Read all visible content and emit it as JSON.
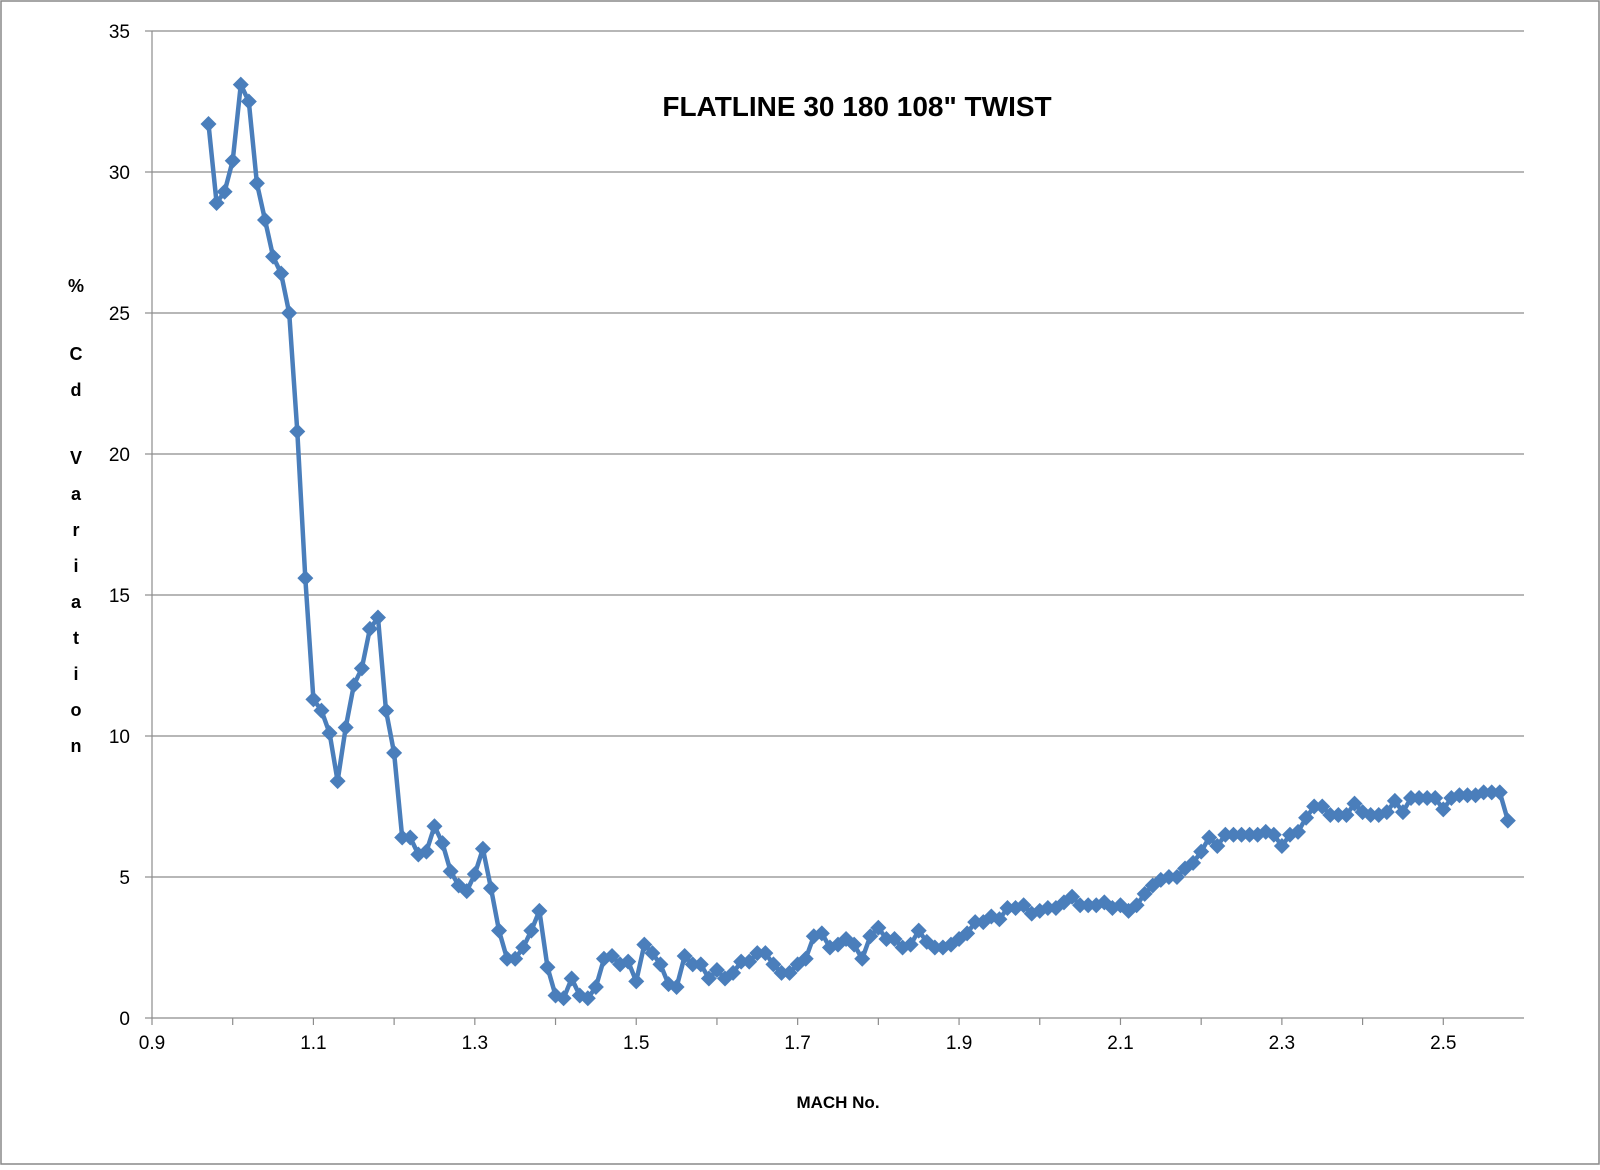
{
  "chart_data": {
    "type": "line",
    "title": "FLATLINE 30 180 108\" TWIST",
    "xlabel": "MACH No.",
    "ylabel": "% Cd Variation",
    "xlim": [
      0.9,
      2.6
    ],
    "ylim": [
      0,
      35
    ],
    "xticks": [
      "0.9",
      "1.1",
      "1.3",
      "1.5",
      "1.7",
      "1.9",
      "2.1",
      "2.3",
      "2.5"
    ],
    "yticks": [
      "0",
      "5",
      "10",
      "15",
      "20",
      "25",
      "30",
      "35"
    ],
    "grid": "horizontal",
    "legend": "none",
    "marker": "diamond",
    "colors": {
      "series": "#4a7ebb",
      "grid": "#8c8c8c",
      "axis": "#8c8c8c",
      "text": "#000000",
      "border": "#888888"
    },
    "series": [
      {
        "x": [
          0.97,
          0.98,
          0.99,
          1.0,
          1.01,
          1.02,
          1.03,
          1.04,
          1.05,
          1.06,
          1.07,
          1.08,
          1.09,
          1.1,
          1.11,
          1.12,
          1.13,
          1.14,
          1.15,
          1.16,
          1.17,
          1.18,
          1.19,
          1.2,
          1.21,
          1.22,
          1.23,
          1.24,
          1.25,
          1.26,
          1.27,
          1.28,
          1.29,
          1.3,
          1.31,
          1.32,
          1.33,
          1.34,
          1.35,
          1.36,
          1.37,
          1.38,
          1.39,
          1.4,
          1.41,
          1.42,
          1.43,
          1.44,
          1.45,
          1.46,
          1.47,
          1.48,
          1.49,
          1.5,
          1.51,
          1.52,
          1.53,
          1.54,
          1.55,
          1.56,
          1.57,
          1.58,
          1.59,
          1.6,
          1.61,
          1.62,
          1.63,
          1.64,
          1.65,
          1.66,
          1.67,
          1.68,
          1.69,
          1.7,
          1.71,
          1.72,
          1.73,
          1.74,
          1.75,
          1.76,
          1.77,
          1.78,
          1.79,
          1.8,
          1.81,
          1.82,
          1.83,
          1.84,
          1.85,
          1.86,
          1.87,
          1.88,
          1.89,
          1.9,
          1.91,
          1.92,
          1.93,
          1.94,
          1.95,
          1.96,
          1.97,
          1.98,
          1.99,
          2.0,
          2.01,
          2.02,
          2.03,
          2.04,
          2.05,
          2.06,
          2.07,
          2.08,
          2.09,
          2.1,
          2.11,
          2.12,
          2.13,
          2.14,
          2.15,
          2.16,
          2.17,
          2.18,
          2.19,
          2.2,
          2.21,
          2.22,
          2.23,
          2.24,
          2.25,
          2.26,
          2.27,
          2.28,
          2.29,
          2.3,
          2.31,
          2.32,
          2.33,
          2.34,
          2.35,
          2.36,
          2.37,
          2.38,
          2.39,
          2.4,
          2.41,
          2.42,
          2.43,
          2.44,
          2.45,
          2.46,
          2.47,
          2.48,
          2.49,
          2.5,
          2.51,
          2.52,
          2.53,
          2.54,
          2.55,
          2.56,
          2.57,
          2.58
        ],
        "y": [
          31.7,
          28.9,
          29.3,
          30.4,
          33.1,
          32.5,
          29.6,
          28.3,
          27.0,
          26.4,
          25.0,
          20.8,
          15.6,
          11.3,
          10.9,
          10.1,
          8.4,
          10.3,
          11.8,
          12.4,
          13.8,
          14.2,
          10.9,
          9.4,
          6.4,
          6.4,
          5.8,
          5.9,
          6.8,
          6.2,
          5.2,
          4.7,
          4.5,
          5.1,
          6.0,
          4.6,
          3.1,
          2.1,
          2.1,
          2.5,
          3.1,
          3.8,
          1.8,
          0.8,
          0.7,
          1.4,
          0.8,
          0.7,
          1.1,
          2.1,
          2.2,
          1.9,
          2.0,
          1.3,
          2.6,
          2.3,
          1.9,
          1.2,
          1.1,
          2.2,
          1.9,
          1.9,
          1.4,
          1.7,
          1.4,
          1.6,
          2.0,
          2.0,
          2.3,
          2.3,
          1.9,
          1.6,
          1.6,
          1.9,
          2.1,
          2.9,
          3.0,
          2.5,
          2.6,
          2.8,
          2.6,
          2.1,
          2.9,
          3.2,
          2.8,
          2.8,
          2.5,
          2.6,
          3.1,
          2.7,
          2.5,
          2.5,
          2.6,
          2.8,
          3.0,
          3.4,
          3.4,
          3.6,
          3.5,
          3.9,
          3.9,
          4.0,
          3.7,
          3.8,
          3.9,
          3.9,
          4.1,
          4.3,
          4.0,
          4.0,
          4.0,
          4.1,
          3.9,
          4.0,
          3.8,
          4.0,
          4.4,
          4.7,
          4.9,
          5.0,
          5.0,
          5.3,
          5.5,
          5.9,
          6.4,
          6.1,
          6.5,
          6.5,
          6.5,
          6.5,
          6.5,
          6.6,
          6.5,
          6.1,
          6.5,
          6.6,
          7.1,
          7.5,
          7.5,
          7.2,
          7.2,
          7.2,
          7.6,
          7.3,
          7.2,
          7.2,
          7.3,
          7.7,
          7.3,
          7.8,
          7.8,
          7.8,
          7.8,
          7.4,
          7.8,
          7.9,
          7.9,
          7.9,
          8.0,
          8.0,
          8.0,
          7.0
        ]
      }
    ]
  }
}
